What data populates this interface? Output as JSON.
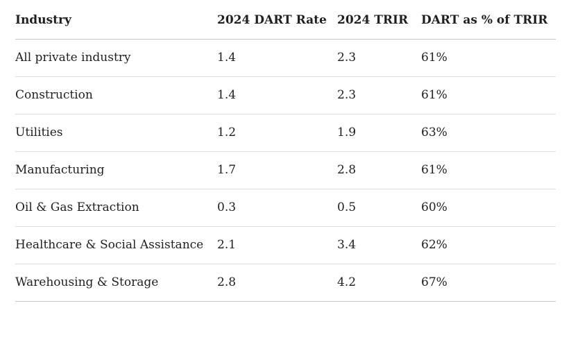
{
  "table": {
    "headers": [
      "Industry",
      "2024 DART Rate",
      "2024 TRIR",
      "DART as % of TRIR"
    ],
    "rows": [
      [
        "All private industry",
        "1.4",
        "2.3",
        "61%"
      ],
      [
        "Construction",
        "1.4",
        "2.3",
        "61%"
      ],
      [
        "Utilities",
        "1.2",
        "1.9",
        "63%"
      ],
      [
        "Manufacturing",
        "1.7",
        "2.8",
        "61%"
      ],
      [
        "Oil & Gas Extraction",
        "0.3",
        "0.5",
        "60%"
      ],
      [
        "Healthcare & Social Assistance",
        "2.1",
        "3.4",
        "62%"
      ],
      [
        "Warehousing & Storage",
        "2.8",
        "4.2",
        "67%"
      ]
    ]
  }
}
